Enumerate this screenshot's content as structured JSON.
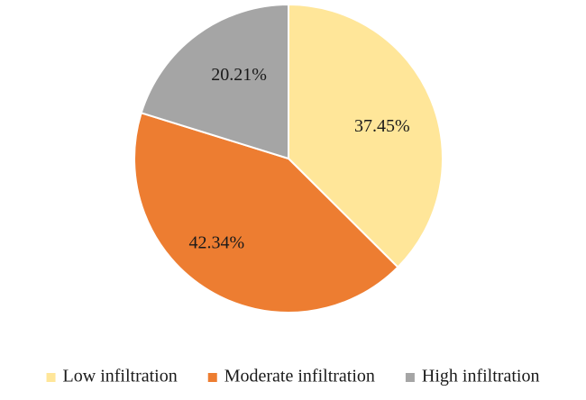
{
  "chart_data": {
    "type": "pie",
    "title": "",
    "slices": [
      {
        "name": "Low infiltration",
        "value": 37.45,
        "label": "37.45%",
        "color": "#FFE699"
      },
      {
        "name": "Moderate infiltration",
        "value": 42.34,
        "label": "42.34%",
        "color": "#ED7D31"
      },
      {
        "name": "High infiltration",
        "value": 20.21,
        "label": "20.21%",
        "color": "#A5A5A5"
      }
    ],
    "start_angle_deg": 0,
    "direction": "clockwise",
    "legend_position": "bottom",
    "slice_border_color": "#ffffff"
  }
}
